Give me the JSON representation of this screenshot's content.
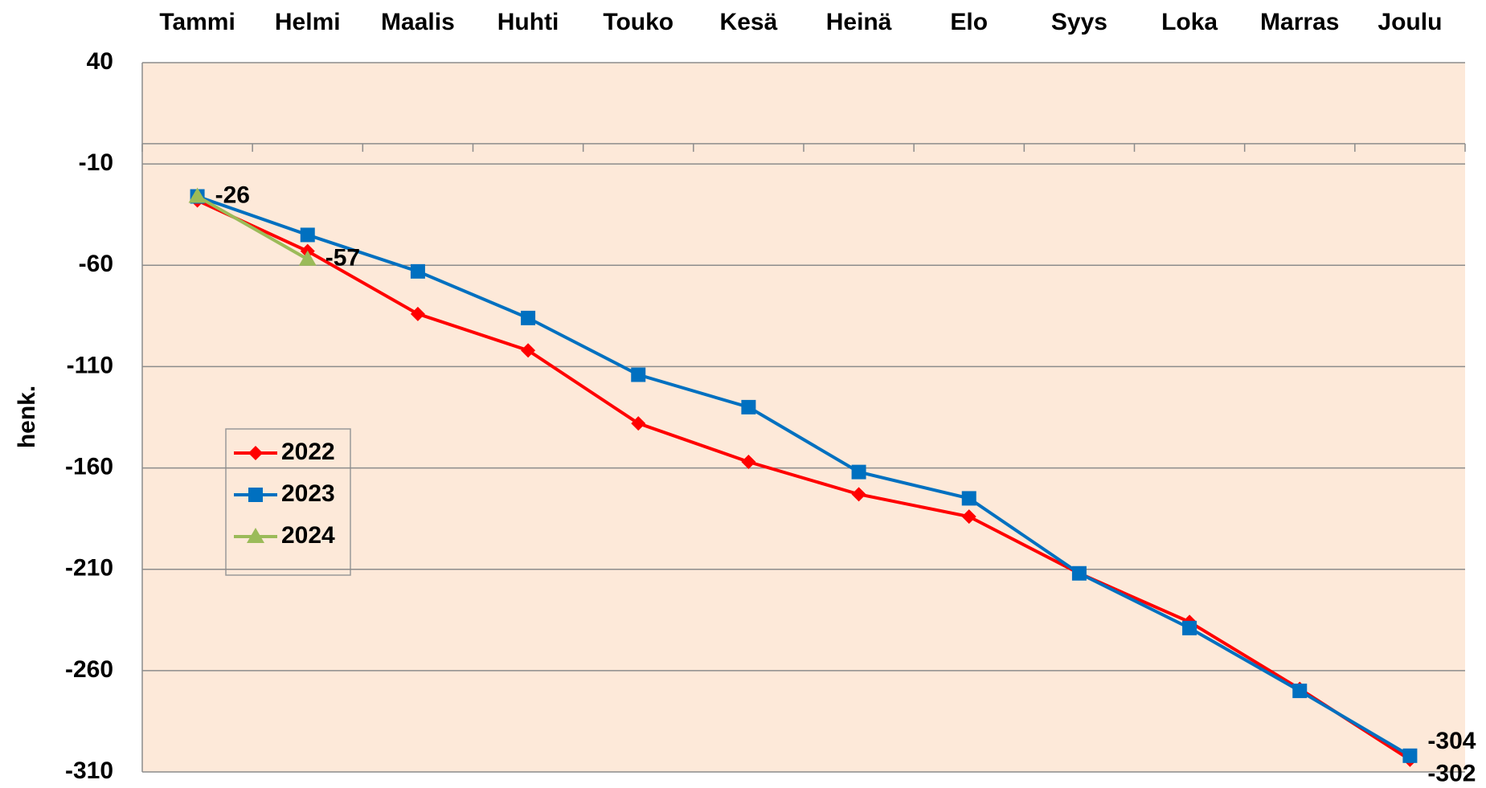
{
  "chart_data": {
    "type": "line",
    "y_label": "henk.",
    "categories": [
      "Tammi",
      "Helmi",
      "Maalis",
      "Huhti",
      "Touko",
      "Kesä",
      "Heinä",
      "Elo",
      "Syys",
      "Loka",
      "Marras",
      "Joulu"
    ],
    "series": [
      {
        "name": "2022",
        "color": "#ff0000",
        "marker": "diamond",
        "label_color": "#ff0000",
        "values": [
          -28,
          -53,
          -84,
          -102,
          -138,
          -157,
          -173,
          -184,
          -212,
          -236,
          -269,
          -304
        ],
        "value_labels": [
          null,
          null,
          null,
          null,
          null,
          null,
          null,
          null,
          null,
          null,
          null,
          "-304"
        ]
      },
      {
        "name": "2023",
        "color": "#0070c0",
        "marker": "square",
        "label_color": "#000000",
        "values": [
          -26,
          -45,
          -63,
          -86,
          -114,
          -130,
          -162,
          -175,
          -212,
          -239,
          -270,
          -302
        ],
        "value_labels": [
          null,
          null,
          null,
          null,
          null,
          null,
          null,
          null,
          null,
          null,
          null,
          "-302"
        ]
      },
      {
        "name": "2024",
        "color": "#9bbb59",
        "marker": "triangle",
        "label_color": "#000000",
        "values": [
          -26,
          -57,
          null,
          null,
          null,
          null,
          null,
          null,
          null,
          null,
          null,
          null
        ],
        "value_labels": [
          "-26",
          "-57",
          null,
          null,
          null,
          null,
          null,
          null,
          null,
          null,
          null,
          null
        ]
      }
    ],
    "ylim": [
      -310,
      40
    ],
    "yticks": [
      40,
      -10,
      -60,
      -110,
      -160,
      -210,
      -260,
      -310
    ],
    "grid": true
  }
}
